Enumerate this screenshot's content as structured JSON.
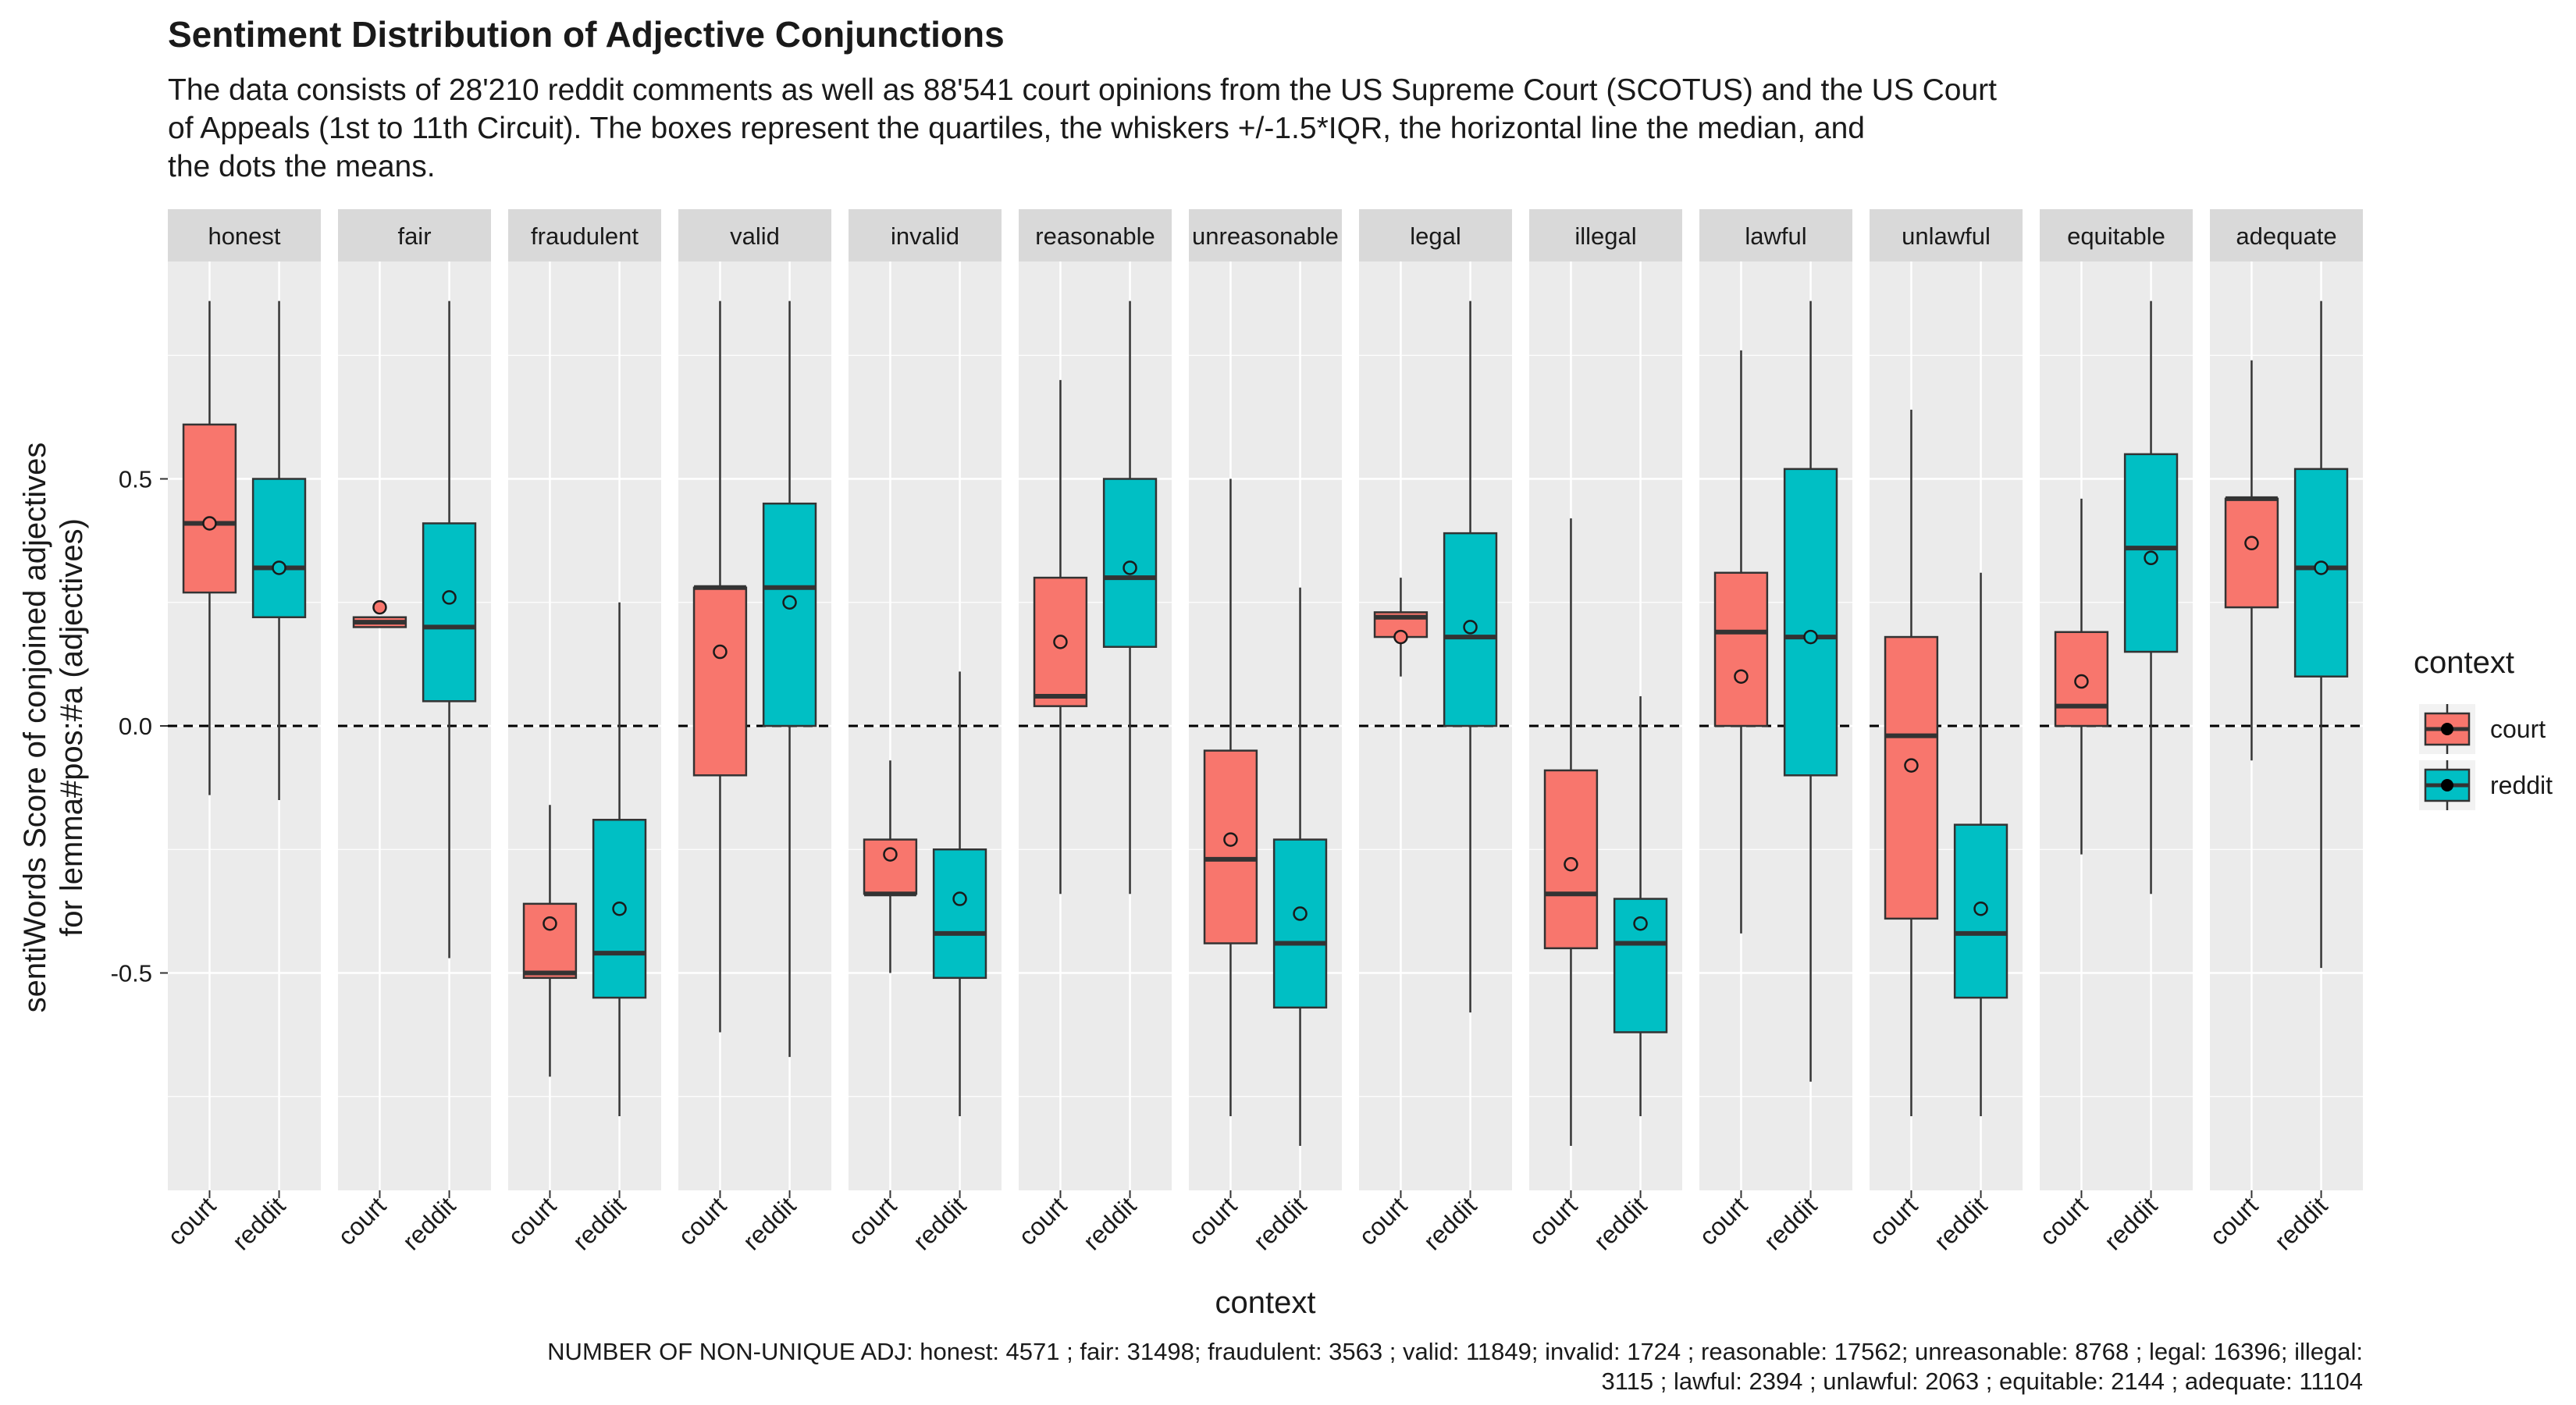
{
  "chart_data": {
    "type": "box",
    "title": "Sentiment Distribution of Adjective Conjunctions",
    "subtitle": [
      "The data consists of 28'210 reddit comments as well as 88'541 court opinions from the US Supreme Court (SCOTUS) and the US Court",
      "of Appeals (1st to 11th Circuit). The boxes represent the quartiles, the whiskers +/-1.5*IQR, the horizontal line the median, and",
      "the dots the means."
    ],
    "caption": [
      "NUMBER OF NON-UNIQUE ADJ: honest: 4571 ; fair: 31498; fraudulent: 3563 ; valid: 11849; invalid: 1724 ; reasonable: 17562; unreasonable: 8768 ; legal: 16396; illegal:",
      "3115 ; lawful: 2394 ; unlawful: 2063 ; equitable: 2144 ; adequate: 11104"
    ],
    "x_label": "context",
    "y_label": [
      "sentiWords Score of conjoined adjectives",
      "for lemma#pos:#a (adjectives)"
    ],
    "legend_title": "context",
    "categories": [
      "court",
      "reddit"
    ],
    "series": [
      {
        "name": "court",
        "color": "#F8766D"
      },
      {
        "name": "reddit",
        "color": "#00BFC4"
      }
    ],
    "ylim": [
      -0.94,
      0.94
    ],
    "yticks": [
      -0.5,
      {
        "value": 0,
        "label": "0.0"
      },
      0.5
    ],
    "minor_yticks": [
      -0.75,
      -0.25,
      0.25,
      0.75
    ],
    "reference_line": 0,
    "grid": true,
    "facets": [
      {
        "name": "honest",
        "boxes": [
          {
            "whisker_low": -0.14,
            "q1": 0.27,
            "median": 0.41,
            "q3": 0.61,
            "whisker_high": 0.86,
            "mean": 0.41
          },
          {
            "whisker_low": -0.15,
            "q1": 0.22,
            "median": 0.32,
            "q3": 0.5,
            "whisker_high": 0.86,
            "mean": 0.32
          }
        ]
      },
      {
        "name": "fair",
        "boxes": [
          {
            "whisker_low": 0.2,
            "q1": 0.2,
            "median": 0.21,
            "q3": 0.22,
            "whisker_high": 0.22,
            "mean": 0.24
          },
          {
            "whisker_low": -0.47,
            "q1": 0.05,
            "median": 0.2,
            "q3": 0.41,
            "whisker_high": 0.86,
            "mean": 0.26
          }
        ]
      },
      {
        "name": "fraudulent",
        "boxes": [
          {
            "whisker_low": -0.71,
            "q1": -0.51,
            "median": -0.5,
            "q3": -0.36,
            "whisker_high": -0.16,
            "mean": -0.4
          },
          {
            "whisker_low": -0.79,
            "q1": -0.55,
            "median": -0.46,
            "q3": -0.19,
            "whisker_high": 0.25,
            "mean": -0.37
          }
        ]
      },
      {
        "name": "valid",
        "boxes": [
          {
            "whisker_low": -0.62,
            "q1": -0.1,
            "median": 0.28,
            "q3": 0.28,
            "whisker_high": 0.86,
            "mean": 0.15
          },
          {
            "whisker_low": -0.67,
            "q1": 0.0,
            "median": 0.28,
            "q3": 0.45,
            "whisker_high": 0.86,
            "mean": 0.25
          }
        ]
      },
      {
        "name": "invalid",
        "boxes": [
          {
            "whisker_low": -0.5,
            "q1": -0.34,
            "median": -0.34,
            "q3": -0.23,
            "whisker_high": -0.07,
            "mean": -0.26
          },
          {
            "whisker_low": -0.79,
            "q1": -0.51,
            "median": -0.42,
            "q3": -0.25,
            "whisker_high": 0.11,
            "mean": -0.35
          }
        ]
      },
      {
        "name": "reasonable",
        "boxes": [
          {
            "whisker_low": -0.34,
            "q1": 0.04,
            "median": 0.06,
            "q3": 0.3,
            "whisker_high": 0.7,
            "mean": 0.17
          },
          {
            "whisker_low": -0.34,
            "q1": 0.16,
            "median": 0.3,
            "q3": 0.5,
            "whisker_high": 0.86,
            "mean": 0.32
          }
        ]
      },
      {
        "name": "unreasonable",
        "boxes": [
          {
            "whisker_low": -0.79,
            "q1": -0.44,
            "median": -0.27,
            "q3": -0.05,
            "whisker_high": 0.5,
            "mean": -0.23
          },
          {
            "whisker_low": -0.85,
            "q1": -0.57,
            "median": -0.44,
            "q3": -0.23,
            "whisker_high": 0.28,
            "mean": -0.38
          }
        ]
      },
      {
        "name": "legal",
        "boxes": [
          {
            "whisker_low": 0.1,
            "q1": 0.18,
            "median": 0.22,
            "q3": 0.23,
            "whisker_high": 0.3,
            "mean": 0.18
          },
          {
            "whisker_low": -0.58,
            "q1": 0.0,
            "median": 0.18,
            "q3": 0.39,
            "whisker_high": 0.86,
            "mean": 0.2
          }
        ]
      },
      {
        "name": "illegal",
        "boxes": [
          {
            "whisker_low": -0.85,
            "q1": -0.45,
            "median": -0.34,
            "q3": -0.09,
            "whisker_high": 0.42,
            "mean": -0.28
          },
          {
            "whisker_low": -0.79,
            "q1": -0.62,
            "median": -0.44,
            "q3": -0.35,
            "whisker_high": 0.06,
            "mean": -0.4
          }
        ]
      },
      {
        "name": "lawful",
        "boxes": [
          {
            "whisker_low": -0.42,
            "q1": 0.0,
            "median": 0.19,
            "q3": 0.31,
            "whisker_high": 0.76,
            "mean": 0.1
          },
          {
            "whisker_low": -0.72,
            "q1": -0.1,
            "median": 0.18,
            "q3": 0.52,
            "whisker_high": 0.86,
            "mean": 0.18
          }
        ]
      },
      {
        "name": "unlawful",
        "boxes": [
          {
            "whisker_low": -0.79,
            "q1": -0.39,
            "median": -0.02,
            "q3": 0.18,
            "whisker_high": 0.64,
            "mean": -0.08
          },
          {
            "whisker_low": -0.79,
            "q1": -0.55,
            "median": -0.42,
            "q3": -0.2,
            "whisker_high": 0.31,
            "mean": -0.37
          }
        ]
      },
      {
        "name": "equitable",
        "boxes": [
          {
            "whisker_low": -0.26,
            "q1": 0.0,
            "median": 0.04,
            "q3": 0.19,
            "whisker_high": 0.46,
            "mean": 0.09
          },
          {
            "whisker_low": -0.34,
            "q1": 0.15,
            "median": 0.36,
            "q3": 0.55,
            "whisker_high": 0.86,
            "mean": 0.34
          }
        ]
      },
      {
        "name": "adequate",
        "boxes": [
          {
            "whisker_low": -0.07,
            "q1": 0.24,
            "median": 0.46,
            "q3": 0.46,
            "whisker_high": 0.74,
            "mean": 0.37
          },
          {
            "whisker_low": -0.49,
            "q1": 0.1,
            "median": 0.32,
            "q3": 0.52,
            "whisker_high": 0.86,
            "mean": 0.32
          }
        ]
      }
    ]
  }
}
